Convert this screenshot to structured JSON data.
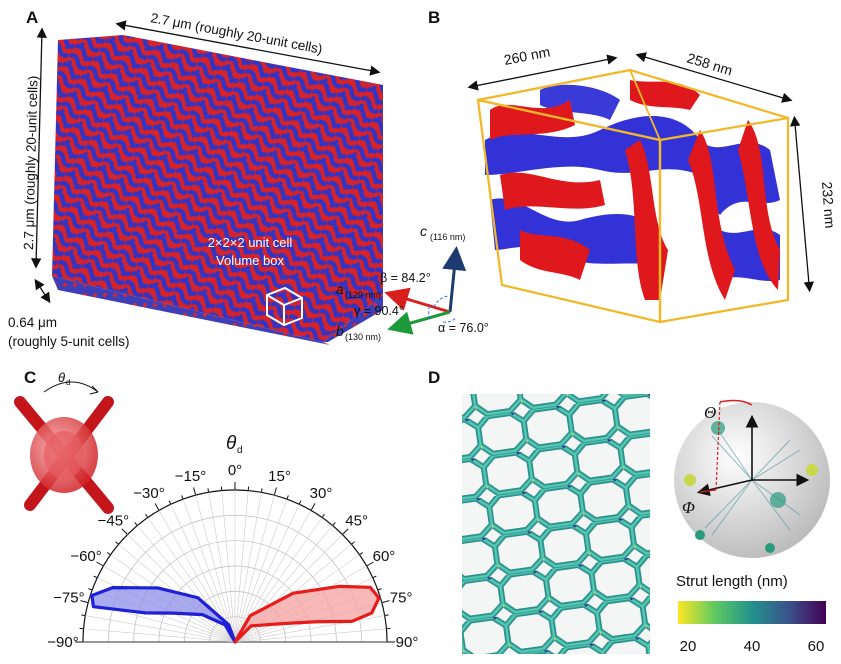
{
  "panels": {
    "a": {
      "letter": "A",
      "top_dim": "2.7 μm (roughly 20-unit cells)",
      "left_dim": "2.7 μm (roughly 20-unit cells)",
      "depth_dim_line1": "0.64 μm",
      "depth_dim_line2": "(roughly 5-unit cells)",
      "unit_cell_line1": "2×2×2 unit cell",
      "unit_cell_line2": "Volume box"
    },
    "b": {
      "letter": "B",
      "dim_front": "260 nm",
      "dim_back": "258 nm",
      "dim_side": "232 nm",
      "axis_c": "c",
      "axis_c_sub": "(116 nm)",
      "axis_a": "a",
      "axis_a_sub": "(129 nm)",
      "axis_b": "b",
      "axis_b_sub": "(130 nm)",
      "beta": "β = 84.2°",
      "gamma": "γ = 90.4°",
      "alpha": "α = 76.0°",
      "colors": {
        "red": "#e0151b",
        "blue": "#2f2fd8",
        "box": "#f2b82a",
        "axis_c": "#1c3970",
        "axis_a": "#d91e1e",
        "axis_b": "#1c9a3a"
      }
    },
    "c": {
      "letter": "C",
      "theta_symbol": "θ",
      "theta_sub": "d",
      "polar_title": "θ",
      "polar_title_sub": "d",
      "angle_labels": [
        "−90°",
        "−75°",
        "−60°",
        "−45°",
        "−30°",
        "−15°",
        "0°",
        "15°",
        "30°",
        "45°",
        "60°",
        "75°",
        "90°"
      ],
      "distributions": [
        {
          "name": "blue",
          "color": "#1d20d6",
          "fill": "#8e8ee8"
        },
        {
          "name": "red",
          "color": "#e81b1b",
          "fill": "#f4a0a0"
        }
      ]
    },
    "d": {
      "letter": "D",
      "theta_label": "Θ",
      "phi_label": "Φ",
      "colorbar_title": "Strut length (nm)",
      "colorbar_ticks": [
        "20",
        "40",
        "60"
      ],
      "colorbar_range": [
        20,
        60
      ]
    }
  }
}
